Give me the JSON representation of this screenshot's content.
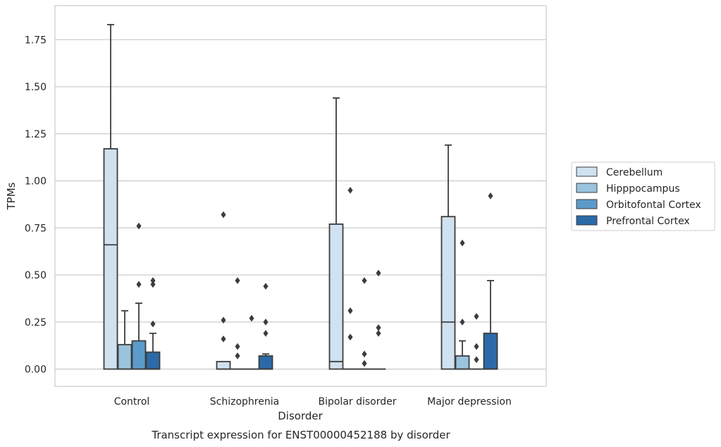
{
  "chart_data": {
    "type": "boxplot",
    "caption": "Transcript expression for ENST00000452188 by disorder",
    "xlabel": "Disorder",
    "ylabel": "TPMs",
    "ylim": [
      -0.09,
      1.93
    ],
    "yticks": [
      0.0,
      0.25,
      0.5,
      0.75,
      1.0,
      1.25,
      1.5,
      1.75
    ],
    "ytick_labels": [
      "0.00",
      "0.25",
      "0.50",
      "0.75",
      "1.00",
      "1.25",
      "1.50",
      "1.75"
    ],
    "grid": true,
    "legend_position": "right",
    "categories": [
      "Control",
      "Schizophrenia",
      "Bipolar disorder",
      "Major depression"
    ],
    "series": [
      {
        "name": "Cerebellum",
        "color": "#d0e1f0",
        "boxes": [
          {
            "whislo": 0.0,
            "q1": 0.0,
            "med": 0.66,
            "q3": 1.17,
            "whishi": 1.83,
            "fliers": []
          },
          {
            "whislo": 0.0,
            "q1": 0.0,
            "med": 0.0,
            "q3": 0.04,
            "whishi": 0.04,
            "fliers": [
              0.82,
              0.26,
              0.16
            ]
          },
          {
            "whislo": 0.0,
            "q1": 0.0,
            "med": 0.04,
            "q3": 0.77,
            "whishi": 1.44,
            "fliers": []
          },
          {
            "whislo": 0.0,
            "q1": 0.0,
            "med": 0.25,
            "q3": 0.81,
            "whishi": 1.19,
            "fliers": []
          }
        ]
      },
      {
        "name": "Hipppocampus",
        "color": "#9ac3dd",
        "boxes": [
          {
            "whislo": 0.0,
            "q1": 0.0,
            "med": 0.0,
            "q3": 0.13,
            "whishi": 0.31,
            "fliers": []
          },
          {
            "whislo": 0.0,
            "q1": 0.0,
            "med": 0.0,
            "q3": 0.0,
            "whishi": 0.0,
            "fliers": [
              0.47,
              0.12,
              0.07
            ]
          },
          {
            "whislo": 0.0,
            "q1": 0.0,
            "med": 0.0,
            "q3": 0.0,
            "whishi": 0.0,
            "fliers": [
              0.95,
              0.31,
              0.17
            ]
          },
          {
            "whislo": 0.0,
            "q1": 0.0,
            "med": 0.0,
            "q3": 0.07,
            "whishi": 0.15,
            "fliers": [
              0.67,
              0.25
            ]
          }
        ]
      },
      {
        "name": "Orbitofontal Cortex",
        "color": "#5b9bc9",
        "boxes": [
          {
            "whislo": 0.0,
            "q1": 0.0,
            "med": 0.0,
            "q3": 0.15,
            "whishi": 0.35,
            "fliers": [
              0.76,
              0.45
            ]
          },
          {
            "whislo": 0.0,
            "q1": 0.0,
            "med": 0.0,
            "q3": 0.0,
            "whishi": 0.0,
            "fliers": [
              0.27
            ]
          },
          {
            "whislo": 0.0,
            "q1": 0.0,
            "med": 0.0,
            "q3": 0.0,
            "whishi": 0.0,
            "fliers": [
              0.47,
              0.08,
              0.03
            ]
          },
          {
            "whislo": 0.0,
            "q1": 0.0,
            "med": 0.0,
            "q3": 0.0,
            "whishi": 0.0,
            "fliers": [
              0.28,
              0.12,
              0.05
            ]
          }
        ]
      },
      {
        "name": "Prefrontal Cortex",
        "color": "#2b69a8",
        "boxes": [
          {
            "whislo": 0.0,
            "q1": 0.0,
            "med": 0.0,
            "q3": 0.09,
            "whishi": 0.19,
            "fliers": [
              0.47,
              0.45,
              0.24
            ]
          },
          {
            "whislo": 0.0,
            "q1": 0.0,
            "med": 0.0,
            "q3": 0.07,
            "whishi": 0.08,
            "fliers": [
              0.44,
              0.25,
              0.19
            ]
          },
          {
            "whislo": 0.0,
            "q1": 0.0,
            "med": 0.0,
            "q3": 0.0,
            "whishi": 0.0,
            "fliers": [
              0.51,
              0.22,
              0.19
            ]
          },
          {
            "whislo": 0.0,
            "q1": 0.0,
            "med": 0.0,
            "q3": 0.19,
            "whishi": 0.47,
            "fliers": [
              0.92
            ]
          }
        ]
      }
    ]
  }
}
